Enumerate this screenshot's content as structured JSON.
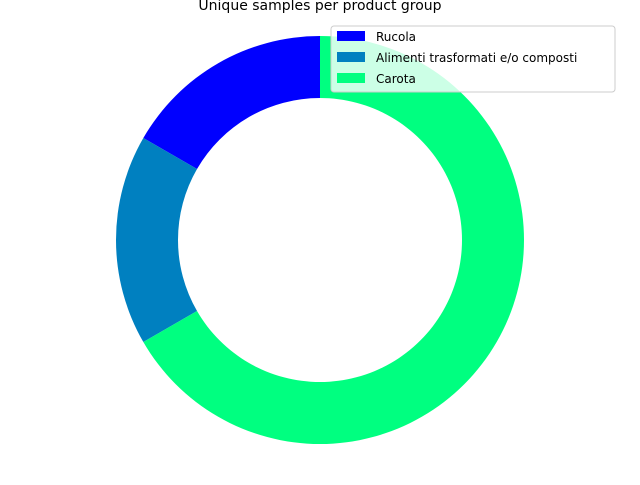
{
  "chart_data": {
    "type": "pie",
    "variant": "donut",
    "title": "Unique samples per product group",
    "legend_position": "top-right",
    "slices": [
      {
        "label": "Rucola",
        "value": 1,
        "color": "#0000ff"
      },
      {
        "label": "Alimenti trasformati e/o composti",
        "value": 1,
        "color": "#0080c0"
      },
      {
        "label": "Carota",
        "value": 4,
        "color": "#00ff80"
      }
    ]
  }
}
